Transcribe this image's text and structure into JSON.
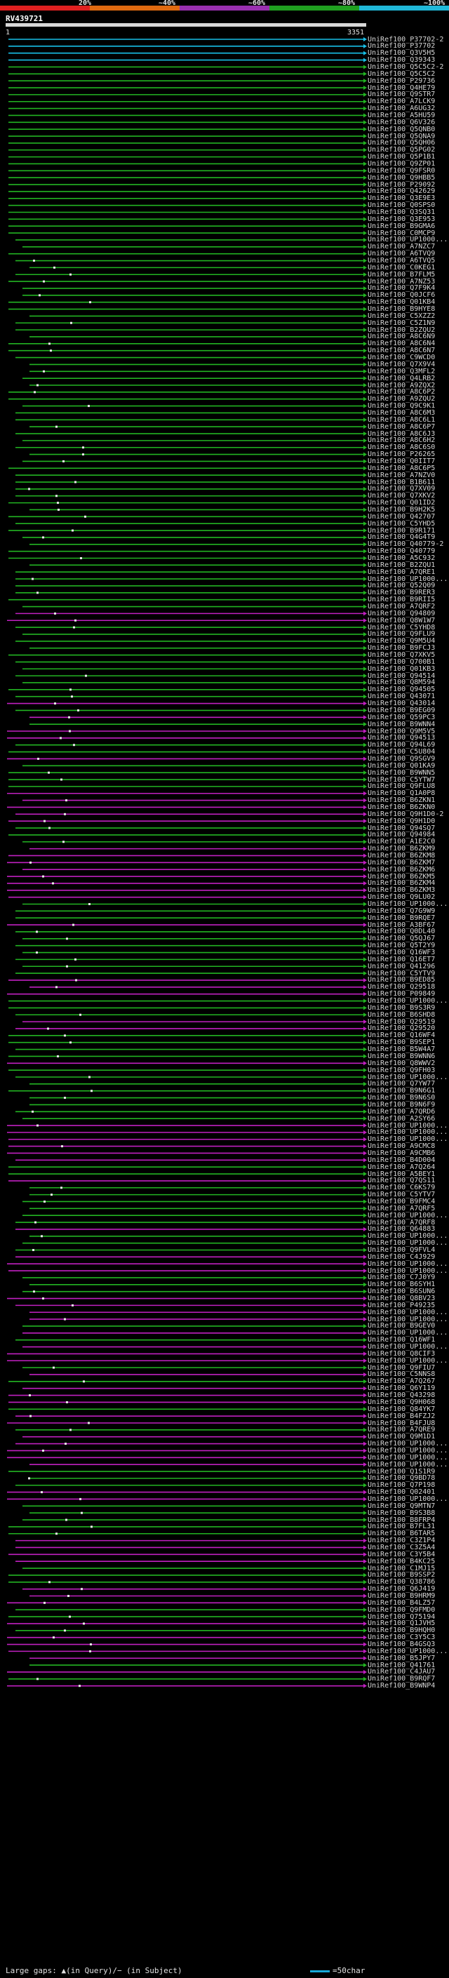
{
  "scale": {
    "ticks": [
      "20%",
      "~40%",
      "~60%",
      "~80%",
      "~100%"
    ],
    "colors": [
      "#e02020",
      "#e06a10",
      "#9a30b0",
      "#20a020",
      "#20b8d8"
    ]
  },
  "query": {
    "title": "RV439721",
    "start": "1",
    "end": "3351"
  },
  "hit_colors": {
    "cyan": "#18c0e8",
    "green": "#22b422",
    "purple": "#c020c0",
    "gap_marker": "#e8e8e8"
  },
  "hits": [
    {
      "label": "UniRef100_P37702-2",
      "color": "cyan"
    },
    {
      "label": "UniRef100_P37702",
      "color": "cyan"
    },
    {
      "label": "UniRef100_Q3V5H5",
      "color": "cyan"
    },
    {
      "label": "UniRef100_Q39343",
      "color": "cyan"
    },
    {
      "label": "UniRef100_Q5C5C2-2",
      "color": "green"
    },
    {
      "label": "UniRef100_Q5C5C2",
      "color": "green"
    },
    {
      "label": "UniRef100_P29736",
      "color": "green"
    },
    {
      "label": "UniRef100_Q4HE79",
      "color": "green"
    },
    {
      "label": "UniRef100_Q9STR7",
      "color": "green"
    },
    {
      "label": "UniRef100_A7LCK9",
      "color": "green"
    },
    {
      "label": "UniRef100_A6UG32",
      "color": "green"
    },
    {
      "label": "UniRef100_A5HU59",
      "color": "green"
    },
    {
      "label": "UniRef100_Q6V326",
      "color": "green"
    },
    {
      "label": "UniRef100_Q5QNB0",
      "color": "green"
    },
    {
      "label": "UniRef100_Q5QNA9",
      "color": "green"
    },
    {
      "label": "UniRef100_Q5QH06",
      "color": "green"
    },
    {
      "label": "UniRef100_Q5PG02",
      "color": "green"
    },
    {
      "label": "UniRef100_Q5P1B1",
      "color": "green"
    },
    {
      "label": "UniRef100_Q9ZP01",
      "color": "green"
    },
    {
      "label": "UniRef100_Q9FSR0",
      "color": "green"
    },
    {
      "label": "UniRef100_Q9HBB5",
      "color": "green"
    },
    {
      "label": "UniRef100_P29092",
      "color": "green"
    },
    {
      "label": "UniRef100_Q42629",
      "color": "green"
    },
    {
      "label": "UniRef100_Q3E9E3",
      "color": "green"
    },
    {
      "label": "UniRef100_Q0SPS0",
      "color": "green"
    },
    {
      "label": "UniRef100_Q3SQ31",
      "color": "green"
    },
    {
      "label": "UniRef100_Q3E953",
      "color": "green"
    },
    {
      "label": "UniRef100_B9GMA6",
      "color": "green"
    },
    {
      "label": "UniRef100_C0MCP9",
      "color": "green"
    },
    {
      "label": "UniRef100_UP1000...",
      "color": "green"
    },
    {
      "label": "UniRef100_A7NZC7",
      "color": "green"
    },
    {
      "label": "UniRef100_A6TVQ9",
      "color": "green"
    },
    {
      "label": "UniRef100_A6TVQ5",
      "color": "green"
    },
    {
      "label": "UniRef100_C0KEG1",
      "color": "green"
    },
    {
      "label": "UniRef100_B7FLM5",
      "color": "green"
    },
    {
      "label": "UniRef100_A7NZ53",
      "color": "green"
    },
    {
      "label": "UniRef100_Q7F9K4",
      "color": "green"
    },
    {
      "label": "UniRef100_Q0JCF6",
      "color": "green"
    },
    {
      "label": "UniRef100_Q01KB4",
      "color": "green"
    },
    {
      "label": "UniRef100_B9HYE8",
      "color": "green"
    },
    {
      "label": "UniRef100_C5XZZ2",
      "color": "green"
    },
    {
      "label": "UniRef100_C5Z1N9",
      "color": "green"
    },
    {
      "label": "UniRef100_B2ZQU2",
      "color": "green"
    },
    {
      "label": "UniRef100_A8C6N9",
      "color": "green"
    },
    {
      "label": "UniRef100_A8C6N4",
      "color": "green"
    },
    {
      "label": "UniRef100_A8C6N7",
      "color": "green"
    },
    {
      "label": "UniRef100_C9WCD0",
      "color": "green"
    },
    {
      "label": "UniRef100_Q7X9V4",
      "color": "green"
    },
    {
      "label": "UniRef100_Q3MFL2",
      "color": "green"
    },
    {
      "label": "UniRef100_Q4LRB2",
      "color": "green"
    },
    {
      "label": "UniRef100_A9ZQX2",
      "color": "green"
    },
    {
      "label": "UniRef100_A8C6P2",
      "color": "green"
    },
    {
      "label": "UniRef100_A9ZQU2",
      "color": "green"
    },
    {
      "label": "UniRef100_Q9C9K1",
      "color": "green"
    },
    {
      "label": "UniRef100_A8C6M3",
      "color": "green"
    },
    {
      "label": "UniRef100_A8C6L1",
      "color": "green"
    },
    {
      "label": "UniRef100_A8C6P7",
      "color": "green"
    },
    {
      "label": "UniRef100_A8C6J3",
      "color": "green"
    },
    {
      "label": "UniRef100_A8C6H2",
      "color": "green"
    },
    {
      "label": "UniRef100_A8C6S0",
      "color": "green"
    },
    {
      "label": "UniRef100_P26265",
      "color": "green"
    },
    {
      "label": "UniRef100_Q0IIT7",
      "color": "green"
    },
    {
      "label": "UniRef100_A8C6P5",
      "color": "green"
    },
    {
      "label": "UniRef100_A7NZV0",
      "color": "green"
    },
    {
      "label": "UniRef100_B1B611",
      "color": "green"
    },
    {
      "label": "UniRef100_Q7XV09",
      "color": "green"
    },
    {
      "label": "UniRef100_Q7XKV2",
      "color": "green"
    },
    {
      "label": "UniRef100_Q01ID2",
      "color": "green"
    },
    {
      "label": "UniRef100_B9H2K5",
      "color": "green"
    },
    {
      "label": "UniRef100_Q42707",
      "color": "green"
    },
    {
      "label": "UniRef100_C5YHD5",
      "color": "green"
    },
    {
      "label": "UniRef100_B9R171",
      "color": "green"
    },
    {
      "label": "UniRef100_Q4G4T9",
      "color": "green"
    },
    {
      "label": "UniRef100_Q40779-2",
      "color": "green"
    },
    {
      "label": "UniRef100_Q40779",
      "color": "green"
    },
    {
      "label": "UniRef100_A5C932",
      "color": "green"
    },
    {
      "label": "UniRef100_B2ZQU1",
      "color": "green"
    },
    {
      "label": "UniRef100_A7QRE1",
      "color": "green"
    },
    {
      "label": "UniRef100_UP1000...",
      "color": "green"
    },
    {
      "label": "UniRef100_Q52Q09",
      "color": "green"
    },
    {
      "label": "UniRef100_B9RER3",
      "color": "green"
    },
    {
      "label": "UniRef100_B9RII5",
      "color": "green"
    },
    {
      "label": "UniRef100_A7QRF2",
      "color": "green"
    },
    {
      "label": "UniRef100_Q94809",
      "color": "purple"
    },
    {
      "label": "UniRef100_Q8W1W7",
      "color": "purple"
    },
    {
      "label": "UniRef100_C5YHD8",
      "color": "green"
    },
    {
      "label": "UniRef100_Q9FLU9",
      "color": "green"
    },
    {
      "label": "UniRef100_Q9M5U4",
      "color": "green"
    },
    {
      "label": "UniRef100_B9FCJ3",
      "color": "green"
    },
    {
      "label": "UniRef100_Q7XKV5",
      "color": "green"
    },
    {
      "label": "UniRef100_Q700B1",
      "color": "green"
    },
    {
      "label": "UniRef100_Q01KB3",
      "color": "green"
    },
    {
      "label": "UniRef100_Q94514",
      "color": "green"
    },
    {
      "label": "UniRef100_Q8M594",
      "color": "green"
    },
    {
      "label": "UniRef100_Q94505",
      "color": "green"
    },
    {
      "label": "UniRef100_Q43071",
      "color": "green"
    },
    {
      "label": "UniRef100_Q43014",
      "color": "purple"
    },
    {
      "label": "UniRef100_B9EG09",
      "color": "green"
    },
    {
      "label": "UniRef100_Q59PC3",
      "color": "purple"
    },
    {
      "label": "UniRef100_B9WNN4",
      "color": "green"
    },
    {
      "label": "UniRef100_Q9M5V5",
      "color": "purple"
    },
    {
      "label": "UniRef100_Q94513",
      "color": "purple"
    },
    {
      "label": "UniRef100_Q94L69",
      "color": "green"
    },
    {
      "label": "UniRef100_C5U804",
      "color": "green"
    },
    {
      "label": "UniRef100_Q9SGV9",
      "color": "purple"
    },
    {
      "label": "UniRef100_Q01KA9",
      "color": "green"
    },
    {
      "label": "UniRef100_B9WNN5",
      "color": "green"
    },
    {
      "label": "UniRef100_C5YTW7",
      "color": "green"
    },
    {
      "label": "UniRef100_Q9FLU8",
      "color": "green"
    },
    {
      "label": "UniRef100_Q1A0P8",
      "color": "purple"
    },
    {
      "label": "UniRef100_B6ZKN1",
      "color": "purple"
    },
    {
      "label": "UniRef100_B6ZKN0",
      "color": "purple"
    },
    {
      "label": "UniRef100_Q9H1D0-2",
      "color": "purple"
    },
    {
      "label": "UniRef100_Q9H1D0",
      "color": "purple"
    },
    {
      "label": "UniRef100_Q94SQ7",
      "color": "green"
    },
    {
      "label": "UniRef100_Q94984",
      "color": "green"
    },
    {
      "label": "UniRef100_A1E2C0",
      "color": "green"
    },
    {
      "label": "UniRef100_B6ZKM9",
      "color": "purple"
    },
    {
      "label": "UniRef100_B6ZKM8",
      "color": "purple"
    },
    {
      "label": "UniRef100_B6ZKM7",
      "color": "purple"
    },
    {
      "label": "UniRef100_B6ZKM6",
      "color": "purple"
    },
    {
      "label": "UniRef100_B6ZKM5",
      "color": "purple"
    },
    {
      "label": "UniRef100_B6ZKM4",
      "color": "purple"
    },
    {
      "label": "UniRef100_B6ZKM3",
      "color": "purple"
    },
    {
      "label": "UniRef100_Q9LU02",
      "color": "purple"
    },
    {
      "label": "UniRef100_UP1000...",
      "color": "green"
    },
    {
      "label": "UniRef100_Q7G9W9",
      "color": "green"
    },
    {
      "label": "UniRef100_B9RQE7",
      "color": "green"
    },
    {
      "label": "UniRef100_A3BF67",
      "color": "purple"
    },
    {
      "label": "UniRef100_Q0DL40",
      "color": "green"
    },
    {
      "label": "UniRef100_Q5QJ67",
      "color": "green"
    },
    {
      "label": "UniRef100_Q5T2Y9",
      "color": "green"
    },
    {
      "label": "UniRef100_Q16WF3",
      "color": "green"
    },
    {
      "label": "UniRef100_Q16ET7",
      "color": "green"
    },
    {
      "label": "UniRef100_Q41296",
      "color": "green"
    },
    {
      "label": "UniRef100_C5YTV9",
      "color": "green"
    },
    {
      "label": "UniRef100_B9ED85",
      "color": "purple"
    },
    {
      "label": "UniRef100_Q29518",
      "color": "purple"
    },
    {
      "label": "UniRef100_P09849",
      "color": "purple"
    },
    {
      "label": "UniRef100_UP1000...",
      "color": "green"
    },
    {
      "label": "UniRef100_B9S3R9",
      "color": "green"
    },
    {
      "label": "UniRef100_B6SHD8",
      "color": "green"
    },
    {
      "label": "UniRef100_Q29519",
      "color": "purple"
    },
    {
      "label": "UniRef100_Q29520",
      "color": "purple"
    },
    {
      "label": "UniRef100_Q16WF4",
      "color": "green"
    },
    {
      "label": "UniRef100_B9SEP1",
      "color": "green"
    },
    {
      "label": "UniRef100_B5W4A7",
      "color": "green"
    },
    {
      "label": "UniRef100_B9WNN6",
      "color": "green"
    },
    {
      "label": "UniRef100_Q8WWV2",
      "color": "purple"
    },
    {
      "label": "UniRef100_Q9FH03",
      "color": "green"
    },
    {
      "label": "UniRef100_UP1000...",
      "color": "green"
    },
    {
      "label": "UniRef100_Q7YW77",
      "color": "green"
    },
    {
      "label": "UniRef100_B9N6G1",
      "color": "green"
    },
    {
      "label": "UniRef100_B9N6S0",
      "color": "green"
    },
    {
      "label": "UniRef100_B9N6F9",
      "color": "green"
    },
    {
      "label": "UniRef100_A7QRD6",
      "color": "green"
    },
    {
      "label": "UniRef100_A2SY66",
      "color": "green"
    },
    {
      "label": "UniRef100_UP1000...",
      "color": "purple"
    },
    {
      "label": "UniRef100_UP1000...",
      "color": "purple"
    },
    {
      "label": "UniRef100_UP1000...",
      "color": "purple"
    },
    {
      "label": "UniRef100_A9CMC8",
      "color": "purple"
    },
    {
      "label": "UniRef100_A9CMB6",
      "color": "purple"
    },
    {
      "label": "UniRef100_B4D004",
      "color": "purple"
    },
    {
      "label": "UniRef100_A7Q264",
      "color": "green"
    },
    {
      "label": "UniRef100_A5BEY1",
      "color": "green"
    },
    {
      "label": "UniRef100_Q7QS11",
      "color": "purple"
    },
    {
      "label": "UniRef100_C6KS79",
      "color": "green"
    },
    {
      "label": "UniRef100_C5YTV7",
      "color": "green"
    },
    {
      "label": "UniRef100_B9FMC4",
      "color": "green"
    },
    {
      "label": "UniRef100_A7QRF5",
      "color": "green"
    },
    {
      "label": "UniRef100_UP1000...",
      "color": "green"
    },
    {
      "label": "UniRef100_A7QRF8",
      "color": "green"
    },
    {
      "label": "UniRef100_Q64883",
      "color": "purple"
    },
    {
      "label": "UniRef100_UP1000...",
      "color": "green"
    },
    {
      "label": "UniRef100_UP1000...",
      "color": "green"
    },
    {
      "label": "UniRef100_Q9FVL4",
      "color": "green"
    },
    {
      "label": "UniRef100_C4J929",
      "color": "purple"
    },
    {
      "label": "UniRef100_UP1000...",
      "color": "purple"
    },
    {
      "label": "UniRef100_UP1000...",
      "color": "purple"
    },
    {
      "label": "UniRef100_C7J0Y9",
      "color": "green"
    },
    {
      "label": "UniRef100_B6SYH1",
      "color": "green"
    },
    {
      "label": "UniRef100_B6SUN6",
      "color": "green"
    },
    {
      "label": "UniRef100_Q8BV23",
      "color": "purple"
    },
    {
      "label": "UniRef100_P49235",
      "color": "purple"
    },
    {
      "label": "UniRef100_UP1000...",
      "color": "purple"
    },
    {
      "label": "UniRef100_UP1000...",
      "color": "purple"
    },
    {
      "label": "UniRef100_B9GEV0",
      "color": "green"
    },
    {
      "label": "UniRef100_UP1000...",
      "color": "purple"
    },
    {
      "label": "UniRef100_Q16WF1",
      "color": "green"
    },
    {
      "label": "UniRef100_UP1000...",
      "color": "purple"
    },
    {
      "label": "UniRef100_Q8CIF3",
      "color": "purple"
    },
    {
      "label": "UniRef100_UP1000...",
      "color": "purple"
    },
    {
      "label": "UniRef100_Q9FIU7",
      "color": "green"
    },
    {
      "label": "UniRef100_C5NNS8",
      "color": "purple"
    },
    {
      "label": "UniRef100_A7Q267",
      "color": "green"
    },
    {
      "label": "UniRef100_Q6Y119",
      "color": "purple"
    },
    {
      "label": "UniRef100_Q43298",
      "color": "purple"
    },
    {
      "label": "UniRef100_Q9H068",
      "color": "purple"
    },
    {
      "label": "UniRef100_Q84YK7",
      "color": "green"
    },
    {
      "label": "UniRef100_B4FZJ2",
      "color": "purple"
    },
    {
      "label": "UniRef100_B4FJU8",
      "color": "purple"
    },
    {
      "label": "UniRef100_A7QRE9",
      "color": "green"
    },
    {
      "label": "UniRef100_Q9M1D1",
      "color": "purple"
    },
    {
      "label": "UniRef100_UP1000...",
      "color": "purple"
    },
    {
      "label": "UniRef100_UP1000...",
      "color": "purple"
    },
    {
      "label": "UniRef100_UP1000...",
      "color": "purple"
    },
    {
      "label": "UniRef100_UP1000...",
      "color": "purple"
    },
    {
      "label": "UniRef100_Q1S1R9",
      "color": "green"
    },
    {
      "label": "UniRef100_Q9BD78",
      "color": "green"
    },
    {
      "label": "UniRef100_Q7P198",
      "color": "green"
    },
    {
      "label": "UniRef100_Q02401",
      "color": "purple"
    },
    {
      "label": "UniRef100_UP1000...",
      "color": "purple"
    },
    {
      "label": "UniRef100_Q9MTN7",
      "color": "green"
    },
    {
      "label": "UniRef100_B9S3B8",
      "color": "green"
    },
    {
      "label": "UniRef100_B8FRP4",
      "color": "green"
    },
    {
      "label": "UniRef100_B7FL31",
      "color": "green"
    },
    {
      "label": "UniRef100_B6TAR5",
      "color": "green"
    },
    {
      "label": "UniRef100_C3Z1P4",
      "color": "purple"
    },
    {
      "label": "UniRef100_C3Z5A4",
      "color": "purple"
    },
    {
      "label": "UniRef100_C3Y5B4",
      "color": "purple"
    },
    {
      "label": "UniRef100_B4KC25",
      "color": "purple"
    },
    {
      "label": "UniRef100_C1MJ15",
      "color": "green"
    },
    {
      "label": "UniRef100_B9SSP2",
      "color": "green"
    },
    {
      "label": "UniRef100_Q38786",
      "color": "green"
    },
    {
      "label": "UniRef100_Q6J419",
      "color": "purple"
    },
    {
      "label": "UniRef100_B9HRM9",
      "color": "purple"
    },
    {
      "label": "UniRef100_B4LZ57",
      "color": "purple"
    },
    {
      "label": "UniRef100_Q9FMD0",
      "color": "green"
    },
    {
      "label": "UniRef100_Q75194",
      "color": "green"
    },
    {
      "label": "UniRef100_Q1JVH5",
      "color": "purple"
    },
    {
      "label": "UniRef100_B9HQH0",
      "color": "green"
    },
    {
      "label": "UniRef100_C3Y5C3",
      "color": "purple"
    },
    {
      "label": "UniRef100_B4GSQ3",
      "color": "purple"
    },
    {
      "label": "UniRef100_UP1000...",
      "color": "purple"
    },
    {
      "label": "UniRef100_B5JPY7",
      "color": "purple"
    },
    {
      "label": "UniRef100_Q41761",
      "color": "green"
    },
    {
      "label": "UniRef100_C4JAU7",
      "color": "purple"
    },
    {
      "label": "UniRef100_B9RQF7",
      "color": "green"
    },
    {
      "label": "UniRef100_B9WNP4",
      "color": "purple"
    }
  ],
  "footer": {
    "text": "Large gaps: ▲(in Query)/− (in Subject)",
    "key": "=50char"
  }
}
